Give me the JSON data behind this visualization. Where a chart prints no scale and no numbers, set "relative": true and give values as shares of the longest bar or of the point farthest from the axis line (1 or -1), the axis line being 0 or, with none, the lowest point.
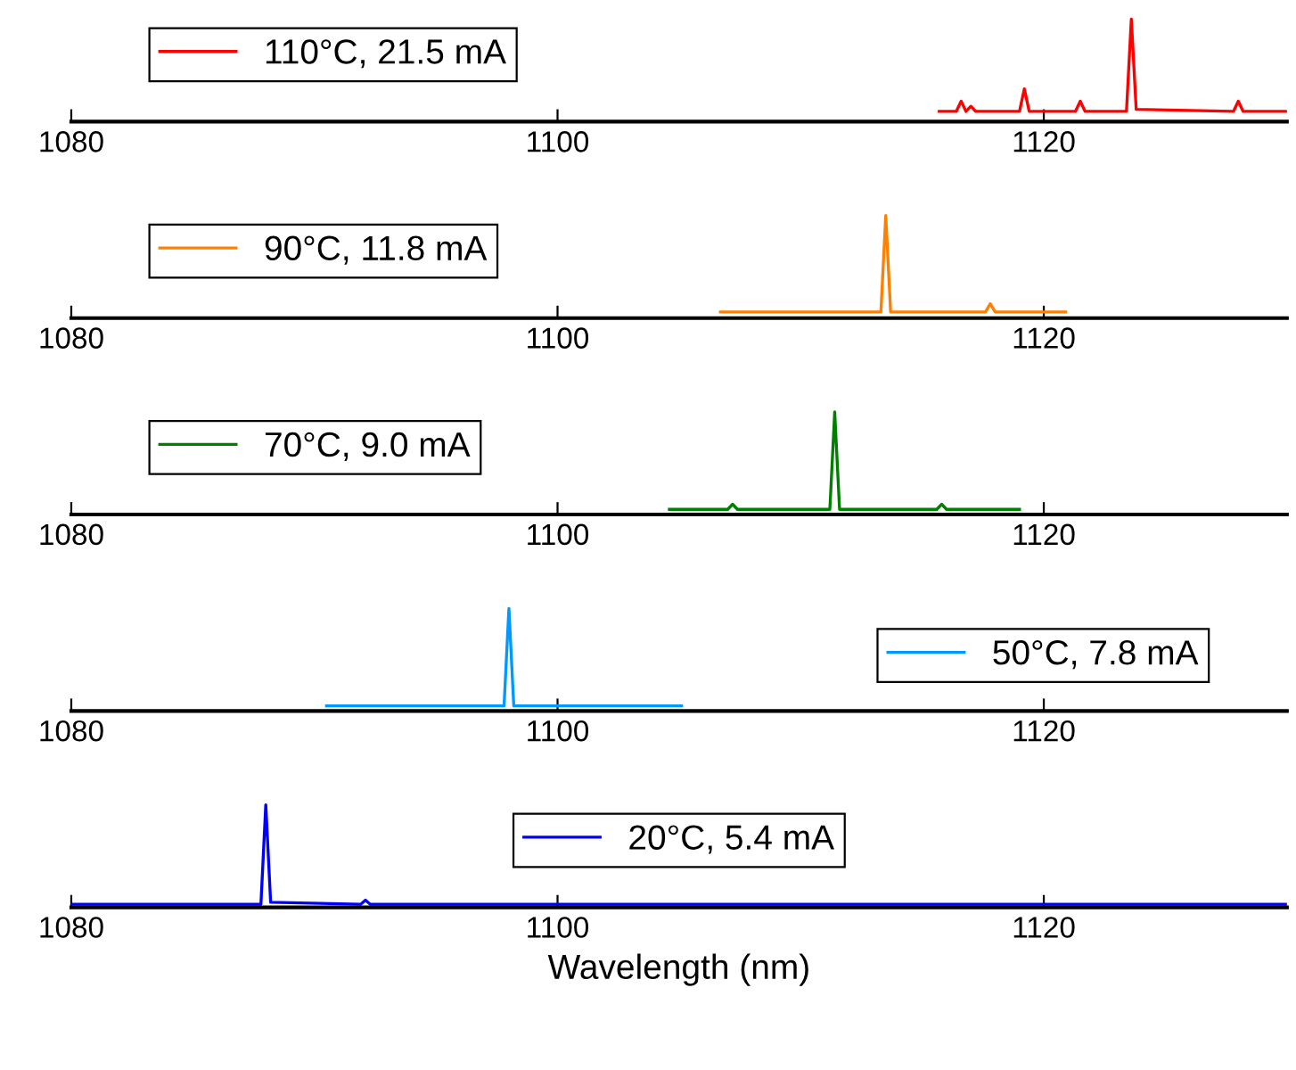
{
  "chart_data": [
    {
      "type": "line",
      "relative": true,
      "xlim": [
        1080,
        1130
      ],
      "xticks": [
        1080,
        1100,
        1120
      ],
      "tick_labels": "x",
      "legend": "top left",
      "marker": "none",
      "line_style": "solid",
      "grid": false,
      "series": [
        {
          "name": "110°C, 21.5 mA",
          "color": "#ff0000",
          "x": [
            1115.7,
            1116.4,
            1116.6,
            1116.8,
            1117.0,
            1117.2,
            1117.4,
            1119.0,
            1119.2,
            1119.4,
            1121.3,
            1121.5,
            1121.7,
            1123.4,
            1123.6,
            1123.8,
            1127.8,
            1128.0,
            1128.2,
            1130
          ],
          "values": [
            0.1,
            0.1,
            0.2,
            0.1,
            0.15,
            0.1,
            0.1,
            0.1,
            0.32,
            0.1,
            0.1,
            0.2,
            0.1,
            0.1,
            1,
            0.12,
            0.1,
            0.2,
            0.1,
            0.1
          ]
        }
      ]
    },
    {
      "type": "line",
      "relative": true,
      "xlim": [
        1080,
        1130
      ],
      "xticks": [
        1080,
        1100,
        1120
      ],
      "tick_labels": "x",
      "legend": "top left",
      "marker": "none",
      "line_style": "solid",
      "grid": false,
      "series": [
        {
          "name": "90°C, 11.8 mA",
          "color": "#ff8000",
          "x": [
            1106.7,
            1113.3,
            1113.5,
            1113.7,
            1117.6,
            1117.8,
            1118.0,
            1120.9
          ],
          "values": [
            0.06,
            0.06,
            1,
            0.06,
            0.06,
            0.14,
            0.06,
            0.06
          ]
        }
      ]
    },
    {
      "type": "line",
      "relative": true,
      "xlim": [
        1080,
        1130
      ],
      "xticks": [
        1080,
        1100,
        1120
      ],
      "tick_labels": "x",
      "legend": "top left",
      "marker": "none",
      "line_style": "solid",
      "grid": false,
      "series": [
        {
          "name": "70°C, 9.0 mA",
          "color": "#008000",
          "x": [
            1104.6,
            1107.0,
            1107.2,
            1107.4,
            1111.2,
            1111.4,
            1111.6,
            1115.6,
            1115.8,
            1116.0,
            1119.0
          ],
          "values": [
            0.05,
            0.05,
            0.1,
            0.05,
            0.05,
            1,
            0.05,
            0.05,
            0.1,
            0.05,
            0.05
          ]
        }
      ]
    },
    {
      "type": "line",
      "relative": true,
      "xlim": [
        1080,
        1130
      ],
      "xticks": [
        1080,
        1100,
        1120
      ],
      "tick_labels": "x",
      "legend": "right",
      "marker": "none",
      "line_style": "solid",
      "grid": false,
      "series": [
        {
          "name": "50°C, 7.8 mA",
          "color": "#0099ff",
          "x": [
            1090.5,
            1097.8,
            1098.0,
            1098.2,
            1105.1
          ],
          "values": [
            0.05,
            0.05,
            1,
            0.05,
            0.05
          ]
        }
      ]
    },
    {
      "type": "line",
      "relative": true,
      "xlim": [
        1080,
        1130
      ],
      "xticks": [
        1080,
        1100,
        1120
      ],
      "tick_labels": "x",
      "legend": "top",
      "marker": "none",
      "line_style": "solid",
      "grid": false,
      "xlabel": "Wavelength (nm)",
      "series": [
        {
          "name": "20°C, 5.4 mA",
          "color": "#0000ff",
          "x": [
            1080,
            1087.8,
            1088.0,
            1088.2,
            1091.9,
            1092.1,
            1092.3,
            1130
          ],
          "values": [
            0.03,
            0.03,
            1,
            0.05,
            0.03,
            0.07,
            0.03,
            0.03
          ]
        }
      ]
    }
  ]
}
